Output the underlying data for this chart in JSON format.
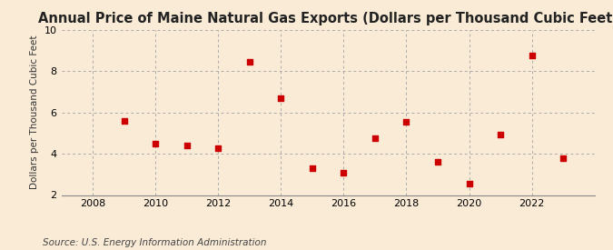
{
  "title": "Annual Price of Maine Natural Gas Exports (Dollars per Thousand Cubic Feet)",
  "ylabel": "Dollars per Thousand Cubic Feet",
  "source": "Source: U.S. Energy Information Administration",
  "background_color": "#faebd7",
  "marker_color": "#cc0000",
  "grid_color": "#aaaaaa",
  "years": [
    2009,
    2010,
    2011,
    2012,
    2013,
    2014,
    2015,
    2016,
    2017,
    2018,
    2019,
    2020,
    2021,
    2022,
    2023
  ],
  "values": [
    5.6,
    4.5,
    4.4,
    4.25,
    8.45,
    6.7,
    3.3,
    3.1,
    4.75,
    5.55,
    3.6,
    2.55,
    4.95,
    8.75,
    3.8
  ],
  "xlim": [
    2007,
    2024
  ],
  "ylim": [
    2,
    10
  ],
  "yticks": [
    2,
    4,
    6,
    8,
    10
  ],
  "xticks": [
    2008,
    2010,
    2012,
    2014,
    2016,
    2018,
    2020,
    2022
  ],
  "title_fontsize": 10.5,
  "ylabel_fontsize": 7.5,
  "source_fontsize": 7.5,
  "tick_fontsize": 8
}
